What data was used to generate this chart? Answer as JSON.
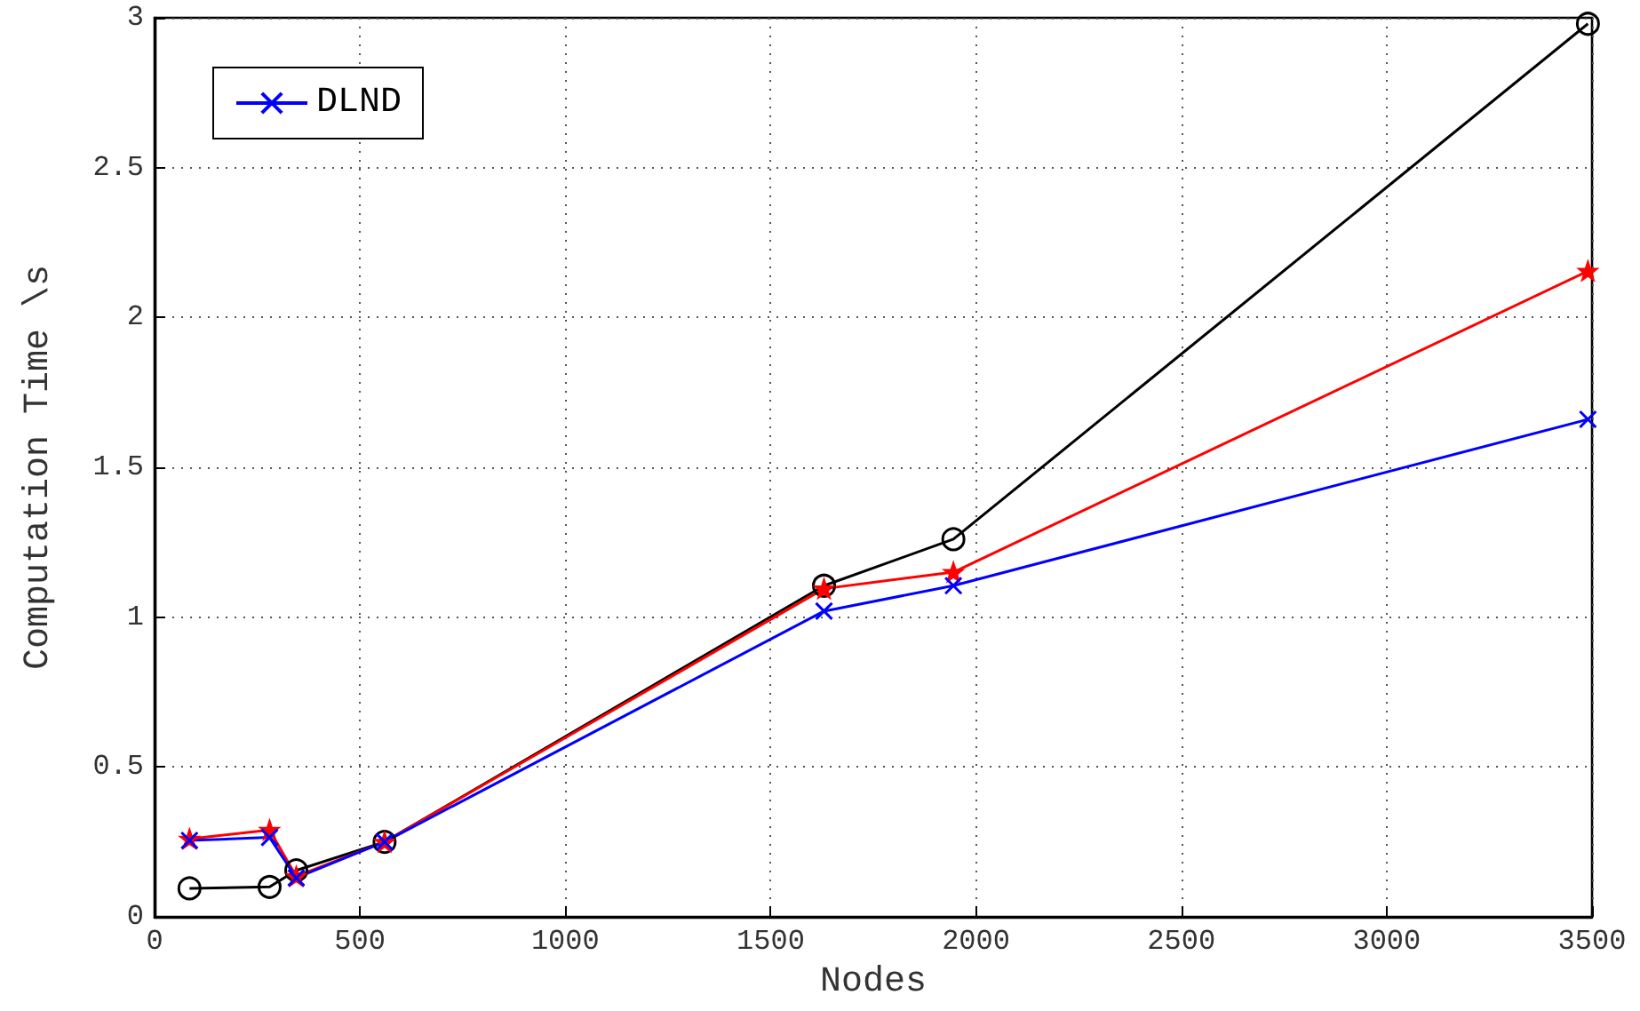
{
  "chart_data": {
    "type": "line",
    "xlabel": "Nodes",
    "ylabel": "Computation Time \\s",
    "x": [
      85,
      280,
      345,
      560,
      1630,
      1945,
      3490
    ],
    "series": [
      {
        "color": "#000000",
        "marker": "circle",
        "values": [
          0.095,
          0.1,
          0.155,
          0.25,
          1.105,
          1.26,
          2.98
        ]
      },
      {
        "color": "#ff0000",
        "marker": "star",
        "values": [
          0.26,
          0.29,
          0.135,
          0.25,
          1.095,
          1.15,
          2.155
        ]
      },
      {
        "name": "DLND",
        "color": "#0000ff",
        "marker": "cross",
        "values": [
          0.255,
          0.265,
          0.13,
          0.25,
          1.02,
          1.105,
          1.66
        ]
      }
    ],
    "xlim": [
      0,
      3500
    ],
    "xticks": [
      0,
      500,
      1000,
      1500,
      2000,
      2500,
      3000,
      3500
    ],
    "ylim": [
      0,
      3
    ],
    "yticks": [
      0,
      0.5,
      1,
      1.5,
      2,
      2.5,
      3
    ],
    "grid": true,
    "legend": "top left",
    "line_style": "solid"
  }
}
